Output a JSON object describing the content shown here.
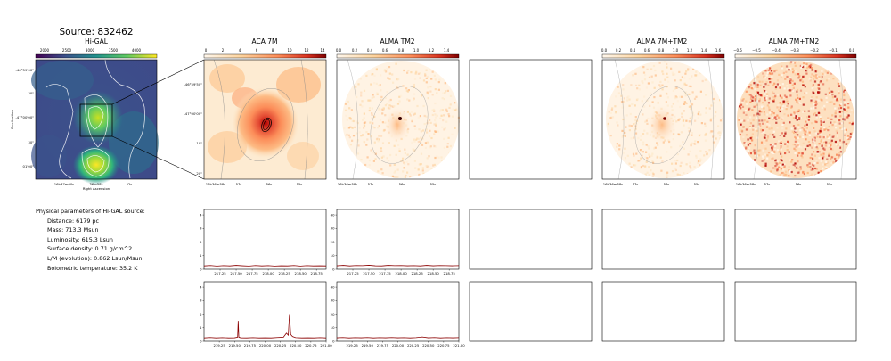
{
  "title": "Source: 832462",
  "panels": {
    "higal": {
      "title": "Hi-GAL",
      "cbar_ticks": [
        "2000",
        "2500",
        "3000",
        "3500",
        "4000"
      ],
      "ytick_labels": [
        "-46°59'00\"",
        "30\"",
        "-47°00'00\"",
        "30\"",
        "01'00\""
      ],
      "xtick_labels": [
        "16h37m00s",
        "36m58s",
        "52s"
      ],
      "xlabel": "Right Ascension",
      "ylabel": "Declination"
    },
    "aca": {
      "title": "ACA 7M",
      "cbar_ticks": [
        "0",
        "2",
        "4",
        "6",
        "8",
        "10",
        "12",
        "14"
      ],
      "ytick_labels": [
        "-46°59'50\"",
        "-47°00'00\"",
        "10\"",
        "20\""
      ],
      "xtick_labels": [
        "16h36m58s",
        "57s",
        "56s",
        "55s"
      ]
    },
    "tm2": {
      "title": "ALMA TM2",
      "cbar_ticks": [
        "0.0",
        "0.2",
        "0.4",
        "0.6",
        "0.8",
        "1.0",
        "1.2",
        "1.4"
      ],
      "xtick_labels": [
        "16h36m58s",
        "57s",
        "56s",
        "55s"
      ]
    },
    "combo": {
      "title": "ALMA 7M+TM2",
      "cbar_ticks": [
        "0.0",
        "0.2",
        "0.4",
        "0.6",
        "0.8",
        "1.0",
        "1.2",
        "1.4",
        "1.6"
      ],
      "xtick_labels": [
        "16h36m58s",
        "57s",
        "56s",
        "55s"
      ]
    },
    "combo_neg": {
      "title": "ALMA 7M+TM2",
      "cbar_ticks": [
        "−0.6",
        "−0.5",
        "−0.4",
        "−0.3",
        "−0.2",
        "−0.1",
        "0.0"
      ],
      "xtick_labels": [
        "16h36m58s",
        "57s",
        "56s",
        "55s"
      ]
    }
  },
  "params": {
    "heading": "Physical parameters of Hi-GAL source:",
    "distance": "Distance: 6179 pc",
    "mass": "Mass: 713.3 Msun",
    "luminosity": "Luminosity: 615.3 Lsun",
    "surface_density": "Surface density: 0.71 g/cm^2",
    "lm": "L/M (evolution): 0.862 Lsun/Msun",
    "tbol": "Bolometric temperature: 35.2 K"
  },
  "chart_data": [
    {
      "type": "line",
      "name": "spectrum-aca-row1",
      "x": [
        217.0,
        217.1,
        217.2,
        217.3,
        217.4,
        217.5,
        217.6,
        217.7,
        217.8,
        217.9,
        218.0,
        218.1,
        218.2,
        218.3,
        218.4,
        218.5,
        218.6,
        218.7,
        218.8,
        218.9
      ],
      "values": [
        0.05,
        0.08,
        0.04,
        0.07,
        0.05,
        0.09,
        0.06,
        0.04,
        0.08,
        0.05,
        0.07,
        0.04,
        0.06,
        0.05,
        0.08,
        0.04,
        0.07,
        0.05,
        0.06,
        0.05
      ],
      "xlim": [
        217.0,
        218.9
      ],
      "ylim": [
        -0.2,
        4.2
      ],
      "xticks": [
        "217.25",
        "217.50",
        "217.75",
        "218.00",
        "218.25",
        "218.50",
        "218.75"
      ],
      "yticks": [
        "0",
        "1",
        "2",
        "3",
        "4"
      ]
    },
    {
      "type": "line",
      "name": "spectrum-tm2-row1",
      "x": [
        217.0,
        217.1,
        217.2,
        217.3,
        217.4,
        217.5,
        217.6,
        217.7,
        217.8,
        217.9,
        218.0,
        218.1,
        218.2,
        218.3,
        218.4,
        218.5,
        218.6,
        218.7,
        218.8,
        218.9
      ],
      "values": [
        0.6,
        0.9,
        0.5,
        0.8,
        0.7,
        1.0,
        0.6,
        0.5,
        0.9,
        0.7,
        0.8,
        0.6,
        0.7,
        0.5,
        0.9,
        0.6,
        0.8,
        0.7,
        0.6,
        0.7
      ],
      "xlim": [
        217.0,
        218.9
      ],
      "ylim": [
        -2,
        42
      ],
      "xticks": [
        "217.25",
        "217.50",
        "217.75",
        "218.00",
        "218.25",
        "218.50",
        "218.75"
      ],
      "yticks": [
        "0",
        "10",
        "20",
        "30",
        "40"
      ]
    },
    {
      "type": "line",
      "name": "spectrum-aca-row2",
      "x": [
        219.0,
        219.1,
        219.2,
        219.3,
        219.4,
        219.5,
        219.55,
        219.56,
        219.57,
        219.6,
        219.7,
        219.8,
        219.9,
        220.0,
        220.1,
        220.2,
        220.3,
        220.35,
        220.38,
        220.4,
        220.42,
        220.45,
        220.5,
        220.6,
        220.7,
        220.8,
        220.9,
        221.0
      ],
      "values": [
        0.05,
        0.08,
        0.05,
        0.07,
        0.05,
        0.06,
        0.1,
        1.3,
        0.1,
        0.06,
        0.05,
        0.07,
        0.05,
        0.06,
        0.05,
        0.08,
        0.1,
        0.4,
        0.25,
        1.8,
        0.3,
        0.15,
        0.07,
        0.05,
        0.06,
        0.05,
        0.07,
        0.05
      ],
      "xlim": [
        219.0,
        221.0
      ],
      "ylim": [
        -0.2,
        4.2
      ],
      "xticks": [
        "219.25",
        "219.50",
        "219.75",
        "220.00",
        "220.25",
        "220.50",
        "220.75",
        "221.00"
      ],
      "yticks": [
        "0",
        "1",
        "2",
        "3",
        "4"
      ]
    },
    {
      "type": "line",
      "name": "spectrum-tm2-row2",
      "x": [
        219.0,
        219.1,
        219.2,
        219.3,
        219.4,
        219.5,
        219.6,
        219.7,
        219.8,
        219.9,
        220.0,
        220.1,
        220.2,
        220.3,
        220.4,
        220.5,
        220.6,
        220.7,
        220.8,
        220.9,
        221.0
      ],
      "values": [
        0.6,
        0.8,
        0.5,
        0.7,
        0.6,
        0.8,
        0.5,
        0.7,
        0.6,
        0.8,
        0.6,
        0.7,
        0.5,
        0.7,
        1.2,
        0.6,
        0.8,
        0.5,
        0.7,
        0.6,
        0.7
      ],
      "xlim": [
        219.0,
        221.0
      ],
      "ylim": [
        -2,
        42
      ],
      "xticks": [
        "219.25",
        "219.50",
        "219.75",
        "220.00",
        "220.25",
        "220.50",
        "220.75",
        "221.00"
      ],
      "yticks": [
        "0",
        "10",
        "20",
        "30",
        "40"
      ]
    }
  ]
}
